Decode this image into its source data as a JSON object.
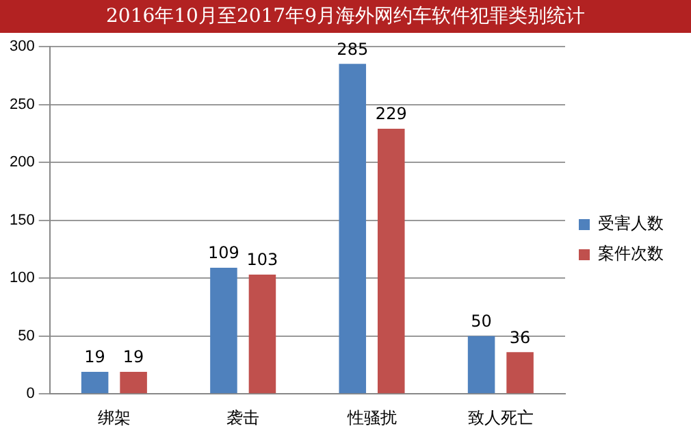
{
  "chart_data": {
    "type": "bar",
    "title": "2016年10月至2017年9月海外网约车软件犯罪类别统计",
    "categories": [
      "绑架",
      "袭击",
      "性骚扰",
      "致人死亡"
    ],
    "series": [
      {
        "name": "受害人数",
        "color": "#4f81bd",
        "values": [
          19,
          109,
          285,
          50
        ]
      },
      {
        "name": "案件次数",
        "color": "#c0504d",
        "values": [
          19,
          103,
          229,
          36
        ]
      }
    ],
    "ylim": [
      0,
      300
    ],
    "yticks": [
      0,
      50,
      100,
      150,
      200,
      250,
      300
    ],
    "grid": "y",
    "legend": "right",
    "data_labels": true
  }
}
